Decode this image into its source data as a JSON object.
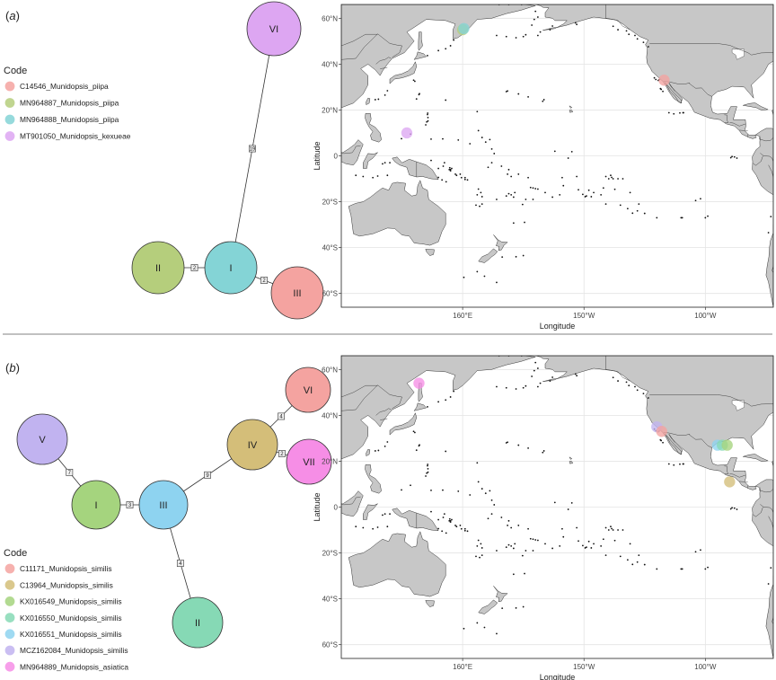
{
  "panels": [
    {
      "id": "a",
      "label": "(a)",
      "legend_title": "Code",
      "legend": [
        {
          "name": "C14546_Munidopsis_piipa",
          "color": "#F4A3A0"
        },
        {
          "name": "MN964887_Munidopsis_piipa",
          "color": "#B5CE7C"
        },
        {
          "name": "MN964888_Munidopsis_piipa",
          "color": "#84D4D6"
        },
        {
          "name": "MT901050_Munidopsis_kexueae",
          "color": "#DDA6F2"
        }
      ],
      "network": {
        "nodes": [
          {
            "id": "VI",
            "label": "VI",
            "color": "#DDA6F2"
          },
          {
            "id": "II",
            "label": "II",
            "color": "#B5CE7C"
          },
          {
            "id": "I",
            "label": "I",
            "color": "#84D4D6"
          },
          {
            "id": "III",
            "label": "III",
            "color": "#F4A3A0"
          }
        ],
        "edges": [
          {
            "from": "I",
            "to": "VI",
            "steps": "19"
          },
          {
            "from": "II",
            "to": "I",
            "steps": "2"
          },
          {
            "from": "I",
            "to": "III",
            "steps": "2"
          }
        ]
      },
      "map": {
        "y_title": "Latitude",
        "x_title": "Longitude",
        "lat_ticks": [
          "60°N",
          "40°N",
          "20°N",
          "0",
          "20°S",
          "40°S",
          "60°S"
        ],
        "lon_ticks": [
          "160°E",
          "150°W",
          "100°W"
        ],
        "points": [
          {
            "lon": 160,
            "lat": 55,
            "color": "#B5CE7C"
          },
          {
            "lon": 160.5,
            "lat": 55.5,
            "color": "#84D4D6"
          },
          {
            "lon": -117,
            "lat": 33,
            "color": "#F4A3A0"
          },
          {
            "lon": 137,
            "lat": 10,
            "color": "#DDA6F2"
          }
        ]
      }
    },
    {
      "id": "b",
      "label": "(b)",
      "legend_title": "Code",
      "legend": [
        {
          "name": "C11171_Munidopsis_similis",
          "color": "#F4A3A0"
        },
        {
          "name": "C13964_Munidopsis_similis",
          "color": "#D4BE79"
        },
        {
          "name": "KX016549_Munidopsis_similis",
          "color": "#A5D47E"
        },
        {
          "name": "KX016550_Munidopsis_similis",
          "color": "#86D9B5"
        },
        {
          "name": "KX016551_Munidopsis_similis",
          "color": "#8ED3F0"
        },
        {
          "name": "MCZ162084_Munidopsis_similis",
          "color": "#C1B3F0"
        },
        {
          "name": "MN964889_Munidopsis_asiatica",
          "color": "#F68EE6"
        }
      ],
      "network": {
        "nodes": [
          {
            "id": "V",
            "label": "V",
            "color": "#C1B3F0"
          },
          {
            "id": "I",
            "label": "I",
            "color": "#A5D47E"
          },
          {
            "id": "III",
            "label": "III",
            "color": "#8ED3F0"
          },
          {
            "id": "II",
            "label": "II",
            "color": "#86D9B5"
          },
          {
            "id": "IV",
            "label": "IV",
            "color": "#D4BE79"
          },
          {
            "id": "VI",
            "label": "VI",
            "color": "#F4A3A0"
          },
          {
            "id": "VII",
            "label": "VII",
            "color": "#F68EE6"
          }
        ],
        "edges": [
          {
            "from": "V",
            "to": "I",
            "steps": "7"
          },
          {
            "from": "I",
            "to": "III",
            "steps": "3"
          },
          {
            "from": "III",
            "to": "II",
            "steps": "4"
          },
          {
            "from": "III",
            "to": "IV",
            "steps": "9"
          },
          {
            "from": "IV",
            "to": "VI",
            "steps": "4"
          },
          {
            "from": "IV",
            "to": "VII",
            "steps": "2"
          }
        ]
      },
      "map": {
        "y_title": "Latitude",
        "x_title": "Longitude",
        "lat_ticks": [
          "60°N",
          "40°N",
          "20°N",
          "0",
          "20°S",
          "40°S",
          "60°S"
        ],
        "lon_ticks": [
          "160°E",
          "150°W",
          "100°W"
        ],
        "points": [
          {
            "lon": 142,
            "lat": 54,
            "color": "#F68EE6"
          },
          {
            "lon": -120,
            "lat": 35,
            "color": "#C1B3F0"
          },
          {
            "lon": -118,
            "lat": 33,
            "color": "#F4A3A0"
          },
          {
            "lon": -95,
            "lat": 27,
            "color": "#8ED3F0"
          },
          {
            "lon": -93,
            "lat": 27,
            "color": "#86D9B5"
          },
          {
            "lon": -91,
            "lat": 27,
            "color": "#A5D47E"
          },
          {
            "lon": -90,
            "lat": 11,
            "color": "#D4BE79"
          }
        ]
      }
    }
  ]
}
